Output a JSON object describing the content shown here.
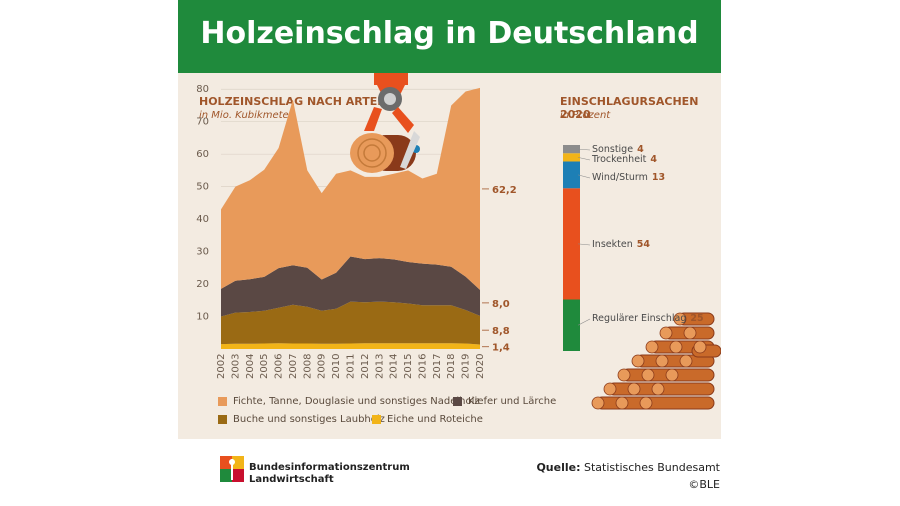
{
  "header": {
    "title": "Holzeinschlag in Deutschland"
  },
  "left": {
    "title": "HOLZEINSCHLAG NACH ARTEN",
    "subtitle": "in Mio. Kubikmeter"
  },
  "right": {
    "title": "EINSCHLAGURSACHEN 2020",
    "subtitle": "in Prozent"
  },
  "chart_data": [
    {
      "type": "area",
      "title": "HOLZEINSCHLAG NACH ARTEN",
      "ylabel": "in Mio. Kubikmeter",
      "stacked": true,
      "ylim": [
        0,
        85
      ],
      "yticks": [
        10,
        20,
        30,
        40,
        50,
        60,
        70,
        80
      ],
      "x": [
        "2002",
        "2003",
        "2004",
        "2005",
        "2006",
        "2007",
        "2008",
        "2009",
        "2010",
        "2011",
        "2012",
        "2013",
        "2014",
        "2015",
        "2016",
        "2017",
        "2018",
        "2019",
        "2020"
      ],
      "series": [
        {
          "name": "Eiche und Roteiche",
          "color": "#f2b418",
          "values": [
            1.5,
            1.6,
            1.6,
            1.7,
            1.8,
            1.7,
            1.7,
            1.6,
            1.6,
            1.7,
            1.8,
            1.8,
            1.8,
            1.8,
            1.8,
            1.8,
            1.8,
            1.7,
            1.4
          ]
        },
        {
          "name": "Buche und sonstiges Laubholz",
          "color": "#9a6a14",
          "values": [
            8.5,
            9.6,
            9.8,
            10.1,
            10.9,
            11.9,
            11.3,
            10.2,
            10.8,
            12.9,
            12.6,
            12.8,
            12.6,
            12.2,
            11.7,
            11.7,
            11.7,
            10.3,
            8.8
          ]
        },
        {
          "name": "Kiefer und Lärche",
          "color": "#5a4844",
          "values": [
            8.5,
            9.8,
            10.1,
            10.4,
            12.2,
            12.2,
            12.0,
            9.6,
            11.1,
            13.9,
            13.3,
            13.4,
            13.2,
            12.8,
            12.8,
            12.5,
            11.8,
            10.3,
            8.0
          ]
        },
        {
          "name": "Fichte, Tanne, Douglasie und sonstiges Nadelholz",
          "color": "#e89a5a",
          "values": [
            24.5,
            29.0,
            30.5,
            33.0,
            37.0,
            51.0,
            30.0,
            26.6,
            30.5,
            26.5,
            25.3,
            25.0,
            26.4,
            28.2,
            26.2,
            28.0,
            49.7,
            57.0,
            62.2
          ]
        }
      ],
      "end_labels": [
        "62,2",
        "8,0",
        "8,8",
        "1,4"
      ]
    },
    {
      "type": "bar",
      "title": "EINSCHLAGURSACHEN 2020",
      "ylabel": "in Prozent",
      "stacked": true,
      "categories": [
        "Regulärer Einschlag",
        "Insekten",
        "Wind/Sturm",
        "Trockenheit",
        "Sonstige"
      ],
      "values": [
        25,
        54,
        13,
        4,
        4
      ],
      "colors": [
        "#1f8a3c",
        "#e8501e",
        "#1d7fb5",
        "#f2b418",
        "#8c8c8c"
      ]
    }
  ],
  "footer": {
    "logo_line1": "Bundesinformationszentrum",
    "logo_line2": "Landwirtschaft",
    "source_label": "Quelle:",
    "source_value": "Statistisches Bundesamt",
    "copyright": "©BLE"
  }
}
